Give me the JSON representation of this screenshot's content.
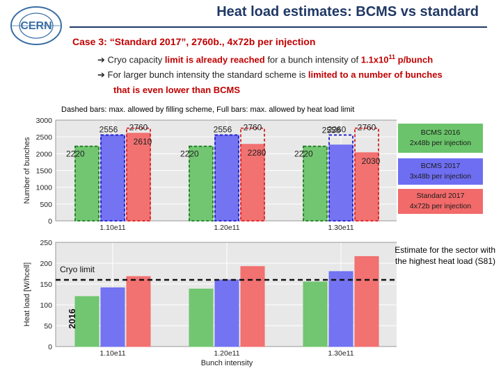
{
  "header": {
    "logo_text": "CERN",
    "title": "Heat load estimates: BCMS vs standard"
  },
  "intro": {
    "case_line": "Case 3: “Standard 2017”, 2760b., 4x72b per injection",
    "bullet1": {
      "arrow": "➔",
      "pre": "Cryo capacity ",
      "highlight": "limit is already reached",
      "mid": " for a bunch intensity of ",
      "value": "1.1x10",
      "exponent": "11",
      "unit": " p/bunch"
    },
    "bullet2": {
      "arrow": "➔",
      "pre": "For larger bunch intensity the standard scheme is ",
      "highlight": "limited to a number of bunches",
      "line2": "that is even lower than BCMS"
    }
  },
  "chart_note": "Dashed bars: max. allowed by filling scheme, Full bars: max. allowed by heat load limit",
  "legend": {
    "bcms2016": [
      "BCMS 2016",
      "2x48b per injection"
    ],
    "bcms2017": [
      "BCMS 2017",
      "3x48b per injection"
    ],
    "std2017": [
      "Standard 2017",
      "4x72b per injection"
    ]
  },
  "side_note": "Estimate for the sector with the highest heat load (S81)",
  "colors": {
    "title": "#1f3864",
    "accent_red": "#c00000",
    "green": "#6bc46b",
    "blue": "#6e6ef2",
    "red": "#f26a6a",
    "dash_green": "#1f7a1f",
    "dash_blue": "#1a1acc",
    "dash_red": "#d61f1f",
    "plot_bg": "#e8e8e8",
    "grid": "#ffffff"
  },
  "chart_data": [
    {
      "type": "bar",
      "title": "",
      "xlabel": "",
      "ylabel": "Number of bunches",
      "ylim": [
        0,
        3000
      ],
      "yticks": [
        "0",
        "500",
        "1000",
        "1500",
        "2000",
        "2500",
        "3000"
      ],
      "categories": [
        "1.10e11",
        "1.20e11",
        "1.30e11"
      ],
      "series": [
        {
          "name": "BCMS 2016 (2x48b per injection)",
          "values": [
            2220,
            2220,
            2220
          ],
          "limits": [
            2220,
            2220,
            2220
          ],
          "labels": [
            "2220",
            "2220",
            "2220"
          ]
        },
        {
          "name": "BCMS 2017 (3x48b per injection)",
          "values": [
            2556,
            2556,
            2260
          ],
          "limits": [
            2556,
            2556,
            2556
          ],
          "labels": [
            "2556",
            "2556",
            "2260"
          ],
          "limit_labels": [
            "",
            "",
            "2556"
          ]
        },
        {
          "name": "Standard 2017 (4x72b per injection)",
          "values": [
            2610,
            2280,
            2030
          ],
          "limits": [
            2760,
            2760,
            2760
          ],
          "labels": [
            "2610",
            "2280",
            "2030"
          ],
          "limit_labels": [
            "2760",
            "2760",
            "2760"
          ]
        }
      ]
    },
    {
      "type": "bar",
      "title": "",
      "xlabel": "Bunch intensity",
      "ylabel": "Heat load [W/hcell]",
      "ylim": [
        0,
        250
      ],
      "yticks": [
        "0",
        "50",
        "100",
        "150",
        "200",
        "250"
      ],
      "categories": [
        "1.10e11",
        "1.20e11",
        "1.30e11"
      ],
      "series": [
        {
          "name": "BCMS 2016",
          "values": [
            120,
            138,
            155
          ]
        },
        {
          "name": "BCMS 2017",
          "values": [
            141,
            160,
            180
          ]
        },
        {
          "name": "Standard 2017",
          "values": [
            168,
            192,
            216
          ]
        }
      ],
      "reference_line": {
        "label": "Cryo limit",
        "value": 160
      },
      "inset_label": "2016"
    }
  ]
}
